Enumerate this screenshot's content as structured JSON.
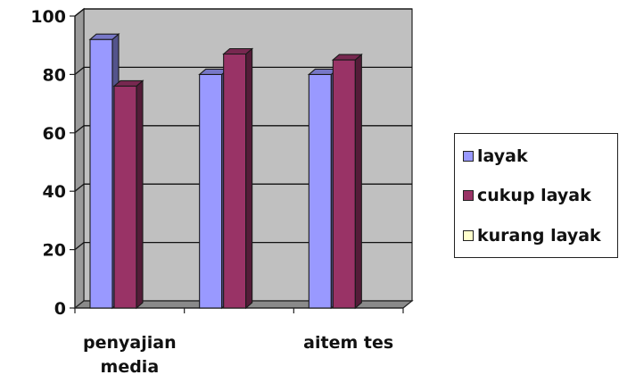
{
  "chart_data": {
    "type": "bar",
    "categories": [
      "penyajian media",
      "",
      "aitem tes"
    ],
    "category_labels": [
      [
        "penyajian",
        "media"
      ],
      [],
      [
        "aitem tes"
      ]
    ],
    "series": [
      {
        "name": "layak",
        "values": [
          92,
          80,
          80
        ],
        "color": "#9999ff"
      },
      {
        "name": "cukup layak",
        "values": [
          76,
          87,
          85
        ],
        "color": "#993366"
      },
      {
        "name": "kurang layak",
        "values": [
          0,
          0,
          0
        ],
        "color": "#ffffcc"
      }
    ],
    "ylim": [
      0,
      100
    ],
    "yticks": [
      0,
      20,
      40,
      60,
      80,
      100
    ],
    "grid": true,
    "legend_position": "right",
    "background": "#c0c0c0"
  }
}
